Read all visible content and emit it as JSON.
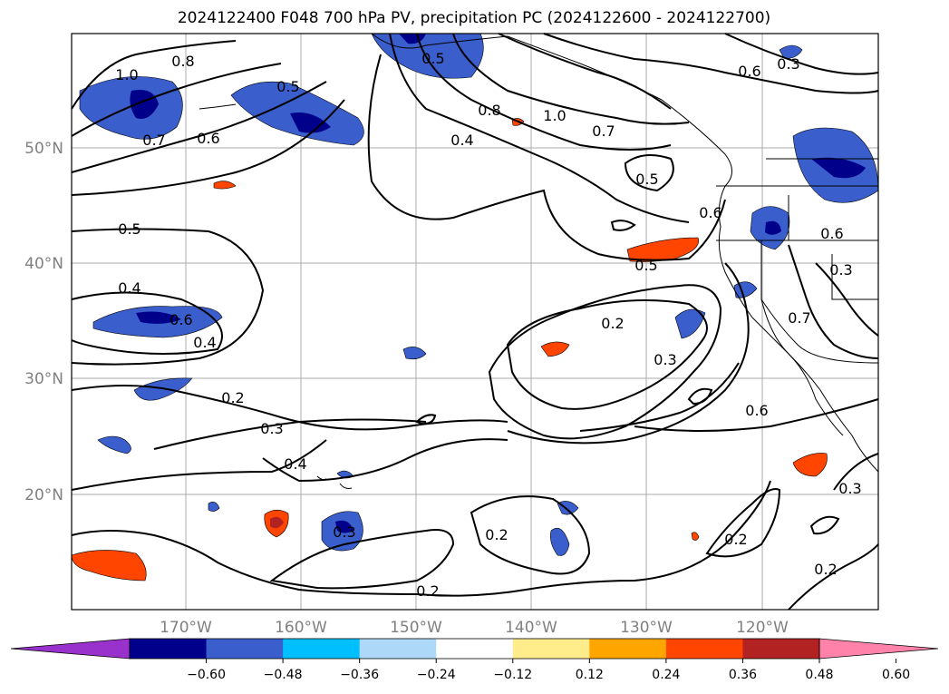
{
  "title": "2024122400 F048 700 hPa PV, precipitation PC (2024122600 - 2024122700)",
  "colors": {
    "land_outline": "#000000",
    "contour": "#000000",
    "grid": "#888888",
    "ocean": "#ffffff"
  },
  "axes": {
    "lat_labels": [
      "50°N",
      "40°N",
      "30°N",
      "20°N"
    ],
    "lon_labels": [
      "170°W",
      "160°W",
      "150°W",
      "140°W",
      "130°W",
      "120°W"
    ]
  },
  "colorbar": {
    "ticks": [
      "−0.60",
      "−0.48",
      "−0.36",
      "−0.24",
      "−0.12",
      "0.12",
      "0.24",
      "0.36",
      "0.48",
      "0.60"
    ],
    "bins": [
      {
        "color": "#9932cc"
      },
      {
        "color": "#00008b"
      },
      {
        "color": "#3a5fcd"
      },
      {
        "color": "#00bfff"
      },
      {
        "color": "#add8f8"
      },
      {
        "color": "#ffffff"
      },
      {
        "color": "#ffec8b"
      },
      {
        "color": "#ffa500"
      },
      {
        "color": "#ff4500"
      },
      {
        "color": "#b22222"
      },
      {
        "color": "#ff82ab"
      }
    ]
  },
  "contour_labels": [
    "1.0",
    "0.8",
    "0.7",
    "0.6",
    "0.5",
    "0.4",
    "0.5",
    "0.4",
    "0.6",
    "0.4",
    "0.2",
    "0.3",
    "0.4",
    "0.3",
    "0.2",
    "0.2",
    "0.5",
    "0.8",
    "1.0",
    "0.7",
    "0.5",
    "0.6",
    "0.5",
    "0.2",
    "0.3",
    "0.6",
    "0.6",
    "0.3",
    "0.7",
    "0.6",
    "0.3",
    "0.2",
    "0.2",
    "0.3"
  ]
}
